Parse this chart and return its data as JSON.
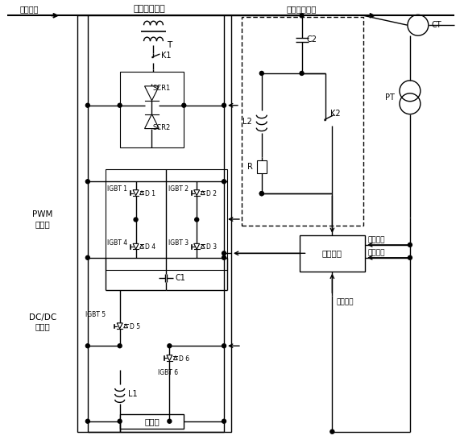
{
  "bg_color": "#ffffff",
  "fig_width": 5.71,
  "fig_height": 5.51,
  "labels": {
    "high_voltage": "高压线路",
    "active_unit": "有源补偿单元",
    "passive_unit": "无源补偿单元",
    "control_unit": "控制单元",
    "pwm": "PWM\n换流器",
    "dcdc": "DC/DC\n变换器",
    "battery_box": "电池组",
    "voltage_sample": "电压采样",
    "current_sample": "电流采样",
    "battery_state": "电池状态",
    "T": "T",
    "K1": "K1",
    "SCR1": "SCR1",
    "SCR2": "SCR2",
    "C1": "C1",
    "L1": "L1",
    "IGBT1": "IGBT 1",
    "IGBT2": "IGBT 2",
    "IGBT3": "IGBT 3",
    "IGBT4": "IGBT 4",
    "IGBT5": "IGBT 5",
    "IGBT6": "IGBT 6",
    "D1": "D 1",
    "D2": "D 2",
    "D3": "D 3",
    "D4": "D 4",
    "D5": "D 5",
    "D6": "D 6",
    "C2": "C2",
    "L2": "L2",
    "K2": "K2",
    "R": "R",
    "CT": "CT",
    "PT": "PT"
  }
}
